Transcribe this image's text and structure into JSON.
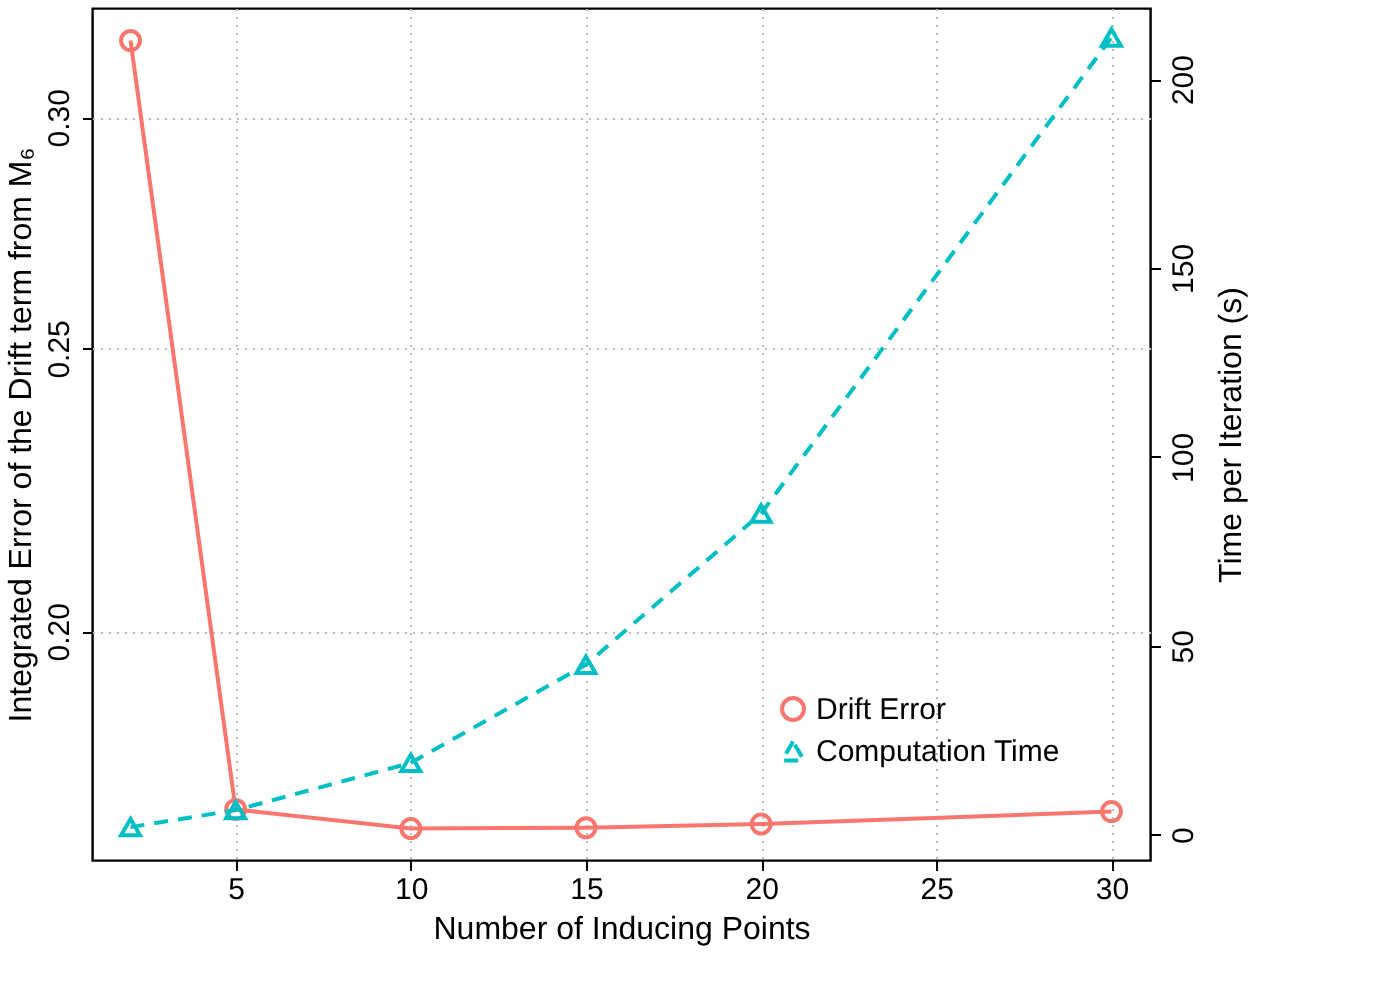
{
  "chart_data": {
    "type": "line",
    "xlabel": "Number of Inducing Points",
    "ylabel": "Integrated Error of the Drift term from M₆",
    "y2label": "Time per Iteration (s)",
    "x": [
      2,
      5,
      10,
      15,
      20,
      30
    ],
    "series": [
      {
        "name": "Drift Error",
        "color": "#f8766d",
        "marker": "circle",
        "line_style": "solid",
        "values": [
          0.3187,
          0.1738,
          0.1712,
          0.1713,
          0.1718,
          0.1735
        ]
      },
      {
        "name": "Computation Time",
        "color": "#00bfc4",
        "marker": "triangle",
        "line_style": "dashed",
        "axis": "y2",
        "values": [
          2,
          6.5,
          19,
          45,
          85,
          211
        ]
      }
    ],
    "xlim": [
      0.9,
      31.1
    ],
    "xticks": [
      5,
      10,
      15,
      20,
      25,
      30
    ],
    "ylim": [
      0.167,
      0.327
    ],
    "yticks": [
      {
        "value": 0.2,
        "label": "0.20"
      },
      {
        "value": 0.25,
        "label": "0.25"
      },
      {
        "value": 0.3,
        "label": "0.30"
      }
    ],
    "log": "y",
    "y2lim": [
      -6.7,
      218.8
    ],
    "y2ticks": [
      0,
      50,
      100,
      150,
      200
    ],
    "grid": true,
    "legend": "bottom right"
  }
}
